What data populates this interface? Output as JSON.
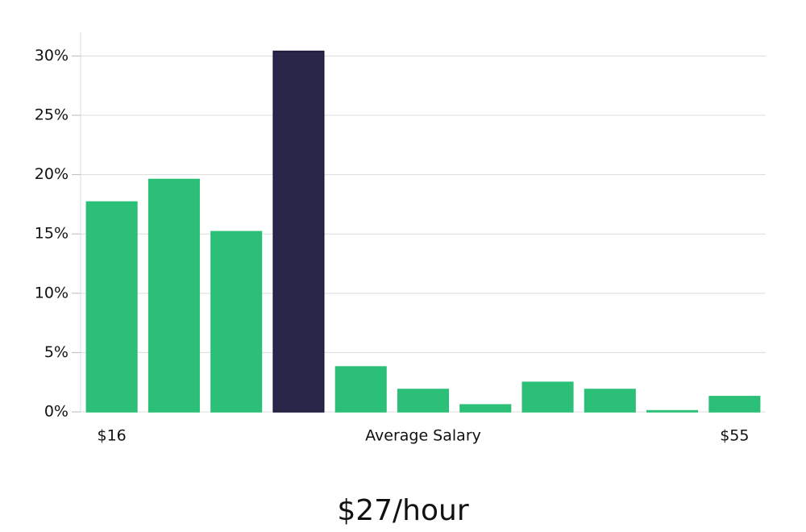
{
  "chart_data": {
    "type": "bar",
    "categories": [
      "$16",
      null,
      null,
      null,
      null,
      null,
      null,
      null,
      null,
      null,
      "$55"
    ],
    "values": [
      17.7,
      19.6,
      15.2,
      30.4,
      3.8,
      1.9,
      0.6,
      2.5,
      1.9,
      0.1,
      1.3
    ],
    "colors": [
      "#2bbf77",
      "#2bbf77",
      "#2bbf77",
      "#29264a",
      "#2bbf77",
      "#2bbf77",
      "#2bbf77",
      "#2bbf77",
      "#2bbf77",
      "#2bbf77",
      "#2bbf77"
    ],
    "x_label": "Average Salary",
    "caption": "$27/hour",
    "ylim": [
      0,
      32
    ],
    "yticks": [
      {
        "value": 0,
        "label": "0%"
      },
      {
        "value": 5,
        "label": "5%"
      },
      {
        "value": 10,
        "label": "10%"
      },
      {
        "value": 15,
        "label": "15%"
      },
      {
        "value": 20,
        "label": "20%"
      },
      {
        "value": 25,
        "label": "25%"
      },
      {
        "value": 30,
        "label": "30%"
      }
    ],
    "grid": true
  }
}
